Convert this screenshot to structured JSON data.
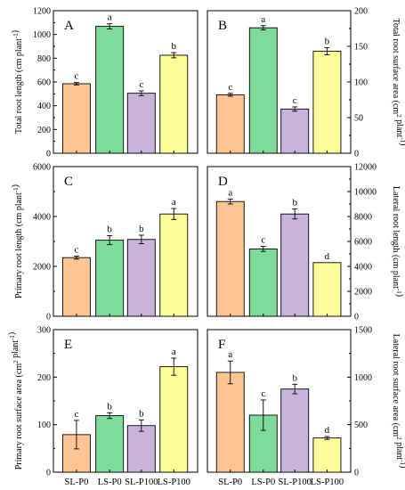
{
  "colors": {
    "SL-P0": "#FDC594",
    "LS-P0": "#7FDB9B",
    "SL-P100": "#C8B4DB",
    "LS-P100": "#FEFE99",
    "axis": "#000000"
  },
  "categories": [
    "SL-P0",
    "LS-P0",
    "SL-P100",
    "LS-P100"
  ],
  "chart_data": [
    {
      "type": "bar",
      "panel": "A",
      "ylabel": "Total root length (cm plant⁻¹)",
      "ylim": [
        0,
        1200
      ],
      "ticks": [
        0,
        200,
        400,
        600,
        800,
        1000,
        1200
      ],
      "tick_labels": [
        "0",
        "200",
        "400",
        "600",
        "800",
        "1000",
        "1200"
      ],
      "axis_side": "left",
      "categories": [
        "SL-P0",
        "LS-P0",
        "SL-P100",
        "LS-P100"
      ],
      "values": [
        585,
        1068,
        505,
        825
      ],
      "errors": [
        10,
        22,
        20,
        22
      ],
      "labels": [
        "c",
        "a",
        "c",
        "b"
      ]
    },
    {
      "type": "bar",
      "panel": "B",
      "ylabel": "Total root surface area (cm² plant⁻¹)",
      "ylim": [
        0,
        200
      ],
      "ticks": [
        0,
        50,
        100,
        150,
        200
      ],
      "tick_labels": [
        "0",
        "50",
        "100",
        "150",
        "200"
      ],
      "axis_side": "right",
      "categories": [
        "SL-P0",
        "LS-P0",
        "SL-P100",
        "LS-P100"
      ],
      "values": [
        82,
        176,
        62,
        143
      ],
      "errors": [
        2,
        3,
        3,
        5
      ],
      "labels": [
        "c",
        "a",
        "c",
        "b"
      ]
    },
    {
      "type": "bar",
      "panel": "C",
      "ylabel": "Primary root length (cm plant⁻¹)",
      "ylim": [
        0,
        6000
      ],
      "ticks": [
        0,
        2000,
        4000,
        6000
      ],
      "tick_labels": [
        "0",
        "2000",
        "4000",
        "6000"
      ],
      "axis_side": "left",
      "categories": [
        "SL-P0",
        "LS-P0",
        "SL-P100",
        "LS-P100"
      ],
      "values": [
        2350,
        3050,
        3080,
        4100
      ],
      "errors": [
        60,
        180,
        170,
        220
      ],
      "labels": [
        "c",
        "b",
        "b",
        "a"
      ]
    },
    {
      "type": "bar",
      "panel": "D",
      "ylabel": "Lateral root length (cm plant⁻¹)",
      "ylim": [
        0,
        12000
      ],
      "ticks": [
        0,
        2000,
        4000,
        6000,
        8000,
        10000,
        12000
      ],
      "tick_labels": [
        "0",
        "2000",
        "4000",
        "6000",
        "8000",
        "10000",
        "12000"
      ],
      "axis_side": "right",
      "categories": [
        "SL-P0",
        "LS-P0",
        "SL-P100",
        "LS-P100"
      ],
      "values": [
        9200,
        5400,
        8200,
        4300
      ],
      "errors": [
        200,
        200,
        400,
        0
      ],
      "labels": [
        "a",
        "c",
        "b",
        "d"
      ]
    },
    {
      "type": "bar",
      "panel": "E",
      "ylabel": "Primary root surface area (cm² plant⁻¹)",
      "ylim": [
        0,
        300
      ],
      "ticks": [
        0,
        100,
        200,
        300
      ],
      "tick_labels": [
        "0",
        "100",
        "200",
        "300"
      ],
      "axis_side": "left",
      "categories": [
        "SL-P0",
        "LS-P0",
        "SL-P100",
        "LS-P100"
      ],
      "values": [
        79,
        119,
        98,
        222
      ],
      "errors": [
        30,
        6,
        12,
        18
      ],
      "labels": [
        "c",
        "b",
        "b",
        "a"
      ]
    },
    {
      "type": "bar",
      "panel": "F",
      "ylabel": "Lateral root surface area (cm² plant⁻¹)",
      "ylim": [
        0,
        1500
      ],
      "ticks": [
        0,
        500,
        1000,
        1500
      ],
      "tick_labels": [
        "0",
        "500",
        "1000",
        "1500"
      ],
      "axis_side": "right",
      "categories": [
        "SL-P0",
        "LS-P0",
        "SL-P100",
        "LS-P100"
      ],
      "values": [
        1050,
        600,
        875,
        360
      ],
      "errors": [
        120,
        160,
        50,
        15
      ],
      "labels": [
        "a",
        "c",
        "b",
        "d"
      ]
    }
  ]
}
